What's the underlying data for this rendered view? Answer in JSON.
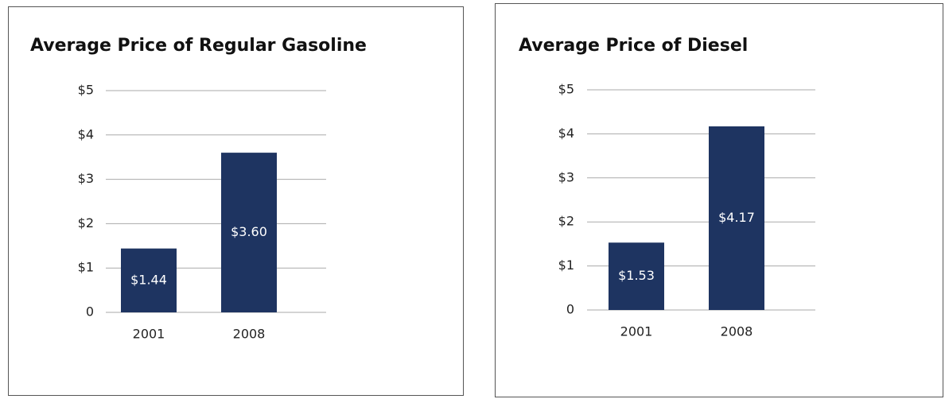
{
  "chart_data": [
    {
      "type": "bar",
      "title": "Average Price of Regular Gasoline",
      "categories": [
        "2001",
        "2008"
      ],
      "values": [
        1.44,
        3.6
      ],
      "value_labels": [
        "$1.44",
        "$3.60"
      ],
      "color": "#1e3461",
      "ylim": [
        0,
        5
      ],
      "yticks": [
        0,
        {
          "value": 1,
          "label": "$1"
        },
        {
          "value": 2,
          "label": "$2"
        },
        {
          "value": 3,
          "label": "$3"
        },
        {
          "value": 4,
          "label": "$4"
        },
        {
          "value": 5,
          "label": "$5"
        }
      ],
      "grid": true
    },
    {
      "type": "bar",
      "title": "Average Price of Diesel",
      "categories": [
        "2001",
        "2008"
      ],
      "values": [
        1.53,
        4.17
      ],
      "value_labels": [
        "$1.53",
        "$4.17"
      ],
      "color": "#1e3461",
      "ylim": [
        0,
        5
      ],
      "yticks": [
        0,
        {
          "value": 1,
          "label": "$1"
        },
        {
          "value": 2,
          "label": "$2"
        },
        {
          "value": 3,
          "label": "$3"
        },
        {
          "value": 4,
          "label": "$4"
        },
        {
          "value": 5,
          "label": "$5"
        }
      ],
      "grid": true
    }
  ]
}
